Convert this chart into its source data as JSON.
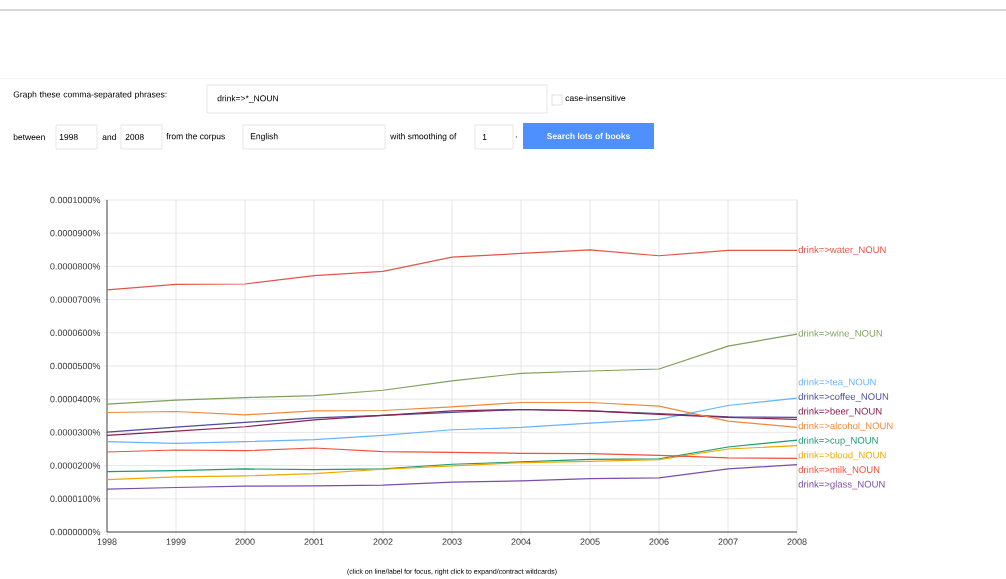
{
  "chart_data": {
    "type": "line",
    "x": [
      1998,
      1999,
      2000,
      2001,
      2002,
      2003,
      2004,
      2005,
      2006,
      2007,
      2008
    ],
    "xlim": [
      1998,
      2008
    ],
    "xticks": [
      1998,
      1999,
      2000,
      2001,
      2002,
      2003,
      2004,
      2005,
      2006,
      2007,
      2008
    ],
    "ylim": [
      0,
      0.0001
    ],
    "yticks": [
      {
        "value": 0,
        "label": "0.0000000%"
      },
      {
        "value": 1e-05,
        "label": "0.0000100%"
      },
      {
        "value": 2e-05,
        "label": "0.0000200%"
      },
      {
        "value": 3e-05,
        "label": "0.0000300%"
      },
      {
        "value": 4e-05,
        "label": "0.0000400%"
      },
      {
        "value": 5e-05,
        "label": "0.0000500%"
      },
      {
        "value": 6e-05,
        "label": "0.0000600%"
      },
      {
        "value": 7e-05,
        "label": "0.0000700%"
      },
      {
        "value": 8e-05,
        "label": "0.0000800%"
      },
      {
        "value": 9e-05,
        "label": "0.0000900%"
      },
      {
        "value": 0.0001,
        "label": "0.0001000%"
      }
    ],
    "grid": true,
    "series": [
      {
        "name": "drink=>water_NOUN",
        "color": "#e0564a",
        "values": [
          7.29e-05,
          7.46e-05,
          7.47e-05,
          7.72e-05,
          7.85e-05,
          8.28e-05,
          8.39e-05,
          8.5e-05,
          8.32e-05,
          8.48e-05,
          8.48e-05
        ]
      },
      {
        "name": "drink=>wine_NOUN",
        "color": "#7fa05c",
        "values": [
          3.85e-05,
          3.97e-05,
          4.05e-05,
          4.11e-05,
          4.27e-05,
          4.55e-05,
          4.78e-05,
          4.85e-05,
          4.91e-05,
          5.6e-05,
          5.96e-05
        ]
      },
      {
        "name": "drink=>tea_NOUN",
        "color": "#66b3ff",
        "values": [
          2.72e-05,
          2.67e-05,
          2.72e-05,
          2.78e-05,
          2.91e-05,
          3.08e-05,
          3.15e-05,
          3.28e-05,
          3.39e-05,
          3.81e-05,
          4.03e-05
        ]
      },
      {
        "name": "drink=>coffee_NOUN",
        "color": "#4c4c9c",
        "values": [
          3.01e-05,
          3.16e-05,
          3.3e-05,
          3.44e-05,
          3.51e-05,
          3.6e-05,
          3.69e-05,
          3.65e-05,
          3.57e-05,
          3.47e-05,
          3.45e-05
        ]
      },
      {
        "name": "drink=>beer_NOUN",
        "color": "#8b2252",
        "values": [
          2.91e-05,
          3.04e-05,
          3.17e-05,
          3.38e-05,
          3.51e-05,
          3.65e-05,
          3.69e-05,
          3.65e-05,
          3.54e-05,
          3.45e-05,
          3.39e-05
        ]
      },
      {
        "name": "drink=>alcohol_NOUN",
        "color": "#f0883a",
        "values": [
          3.6e-05,
          3.63e-05,
          3.53e-05,
          3.65e-05,
          3.66e-05,
          3.77e-05,
          3.9e-05,
          3.9e-05,
          3.79e-05,
          3.34e-05,
          3.15e-05
        ]
      },
      {
        "name": "drink=>cup_NOUN",
        "color": "#1f9a6e",
        "values": [
          1.82e-05,
          1.85e-05,
          1.9e-05,
          1.88e-05,
          1.9e-05,
          2.04e-05,
          2.11e-05,
          2.19e-05,
          2.2e-05,
          2.56e-05,
          2.77e-05
        ]
      },
      {
        "name": "drink=>blood_NOUN",
        "color": "#f0a800",
        "values": [
          1.58e-05,
          1.66e-05,
          1.69e-05,
          1.76e-05,
          1.89e-05,
          1.99e-05,
          2.09e-05,
          2.13e-05,
          2.18e-05,
          2.5e-05,
          2.6e-05
        ]
      },
      {
        "name": "drink=>milk_NOUN",
        "color": "#f0503c",
        "values": [
          2.41e-05,
          2.47e-05,
          2.45e-05,
          2.53e-05,
          2.42e-05,
          2.4e-05,
          2.37e-05,
          2.36e-05,
          2.31e-05,
          2.23e-05,
          2.22e-05
        ]
      },
      {
        "name": "drink=>glass_NOUN",
        "color": "#7b4ea8",
        "values": [
          1.29e-05,
          1.34e-05,
          1.38e-05,
          1.39e-05,
          1.41e-05,
          1.5e-05,
          1.54e-05,
          1.61e-05,
          1.63e-05,
          1.9e-05,
          2.03e-05
        ]
      }
    ],
    "annotations": [
      "Graph these comma-separated phrases:",
      "drink=>*_NOUN",
      "case-insensitive",
      "between",
      "1998",
      "and",
      "2008",
      "from the corpus",
      "English",
      "with smoothing of",
      "1",
      ".",
      "Search lots of books",
      "(click on line/label for focus, right click to expand/contract wildcards)"
    ]
  }
}
